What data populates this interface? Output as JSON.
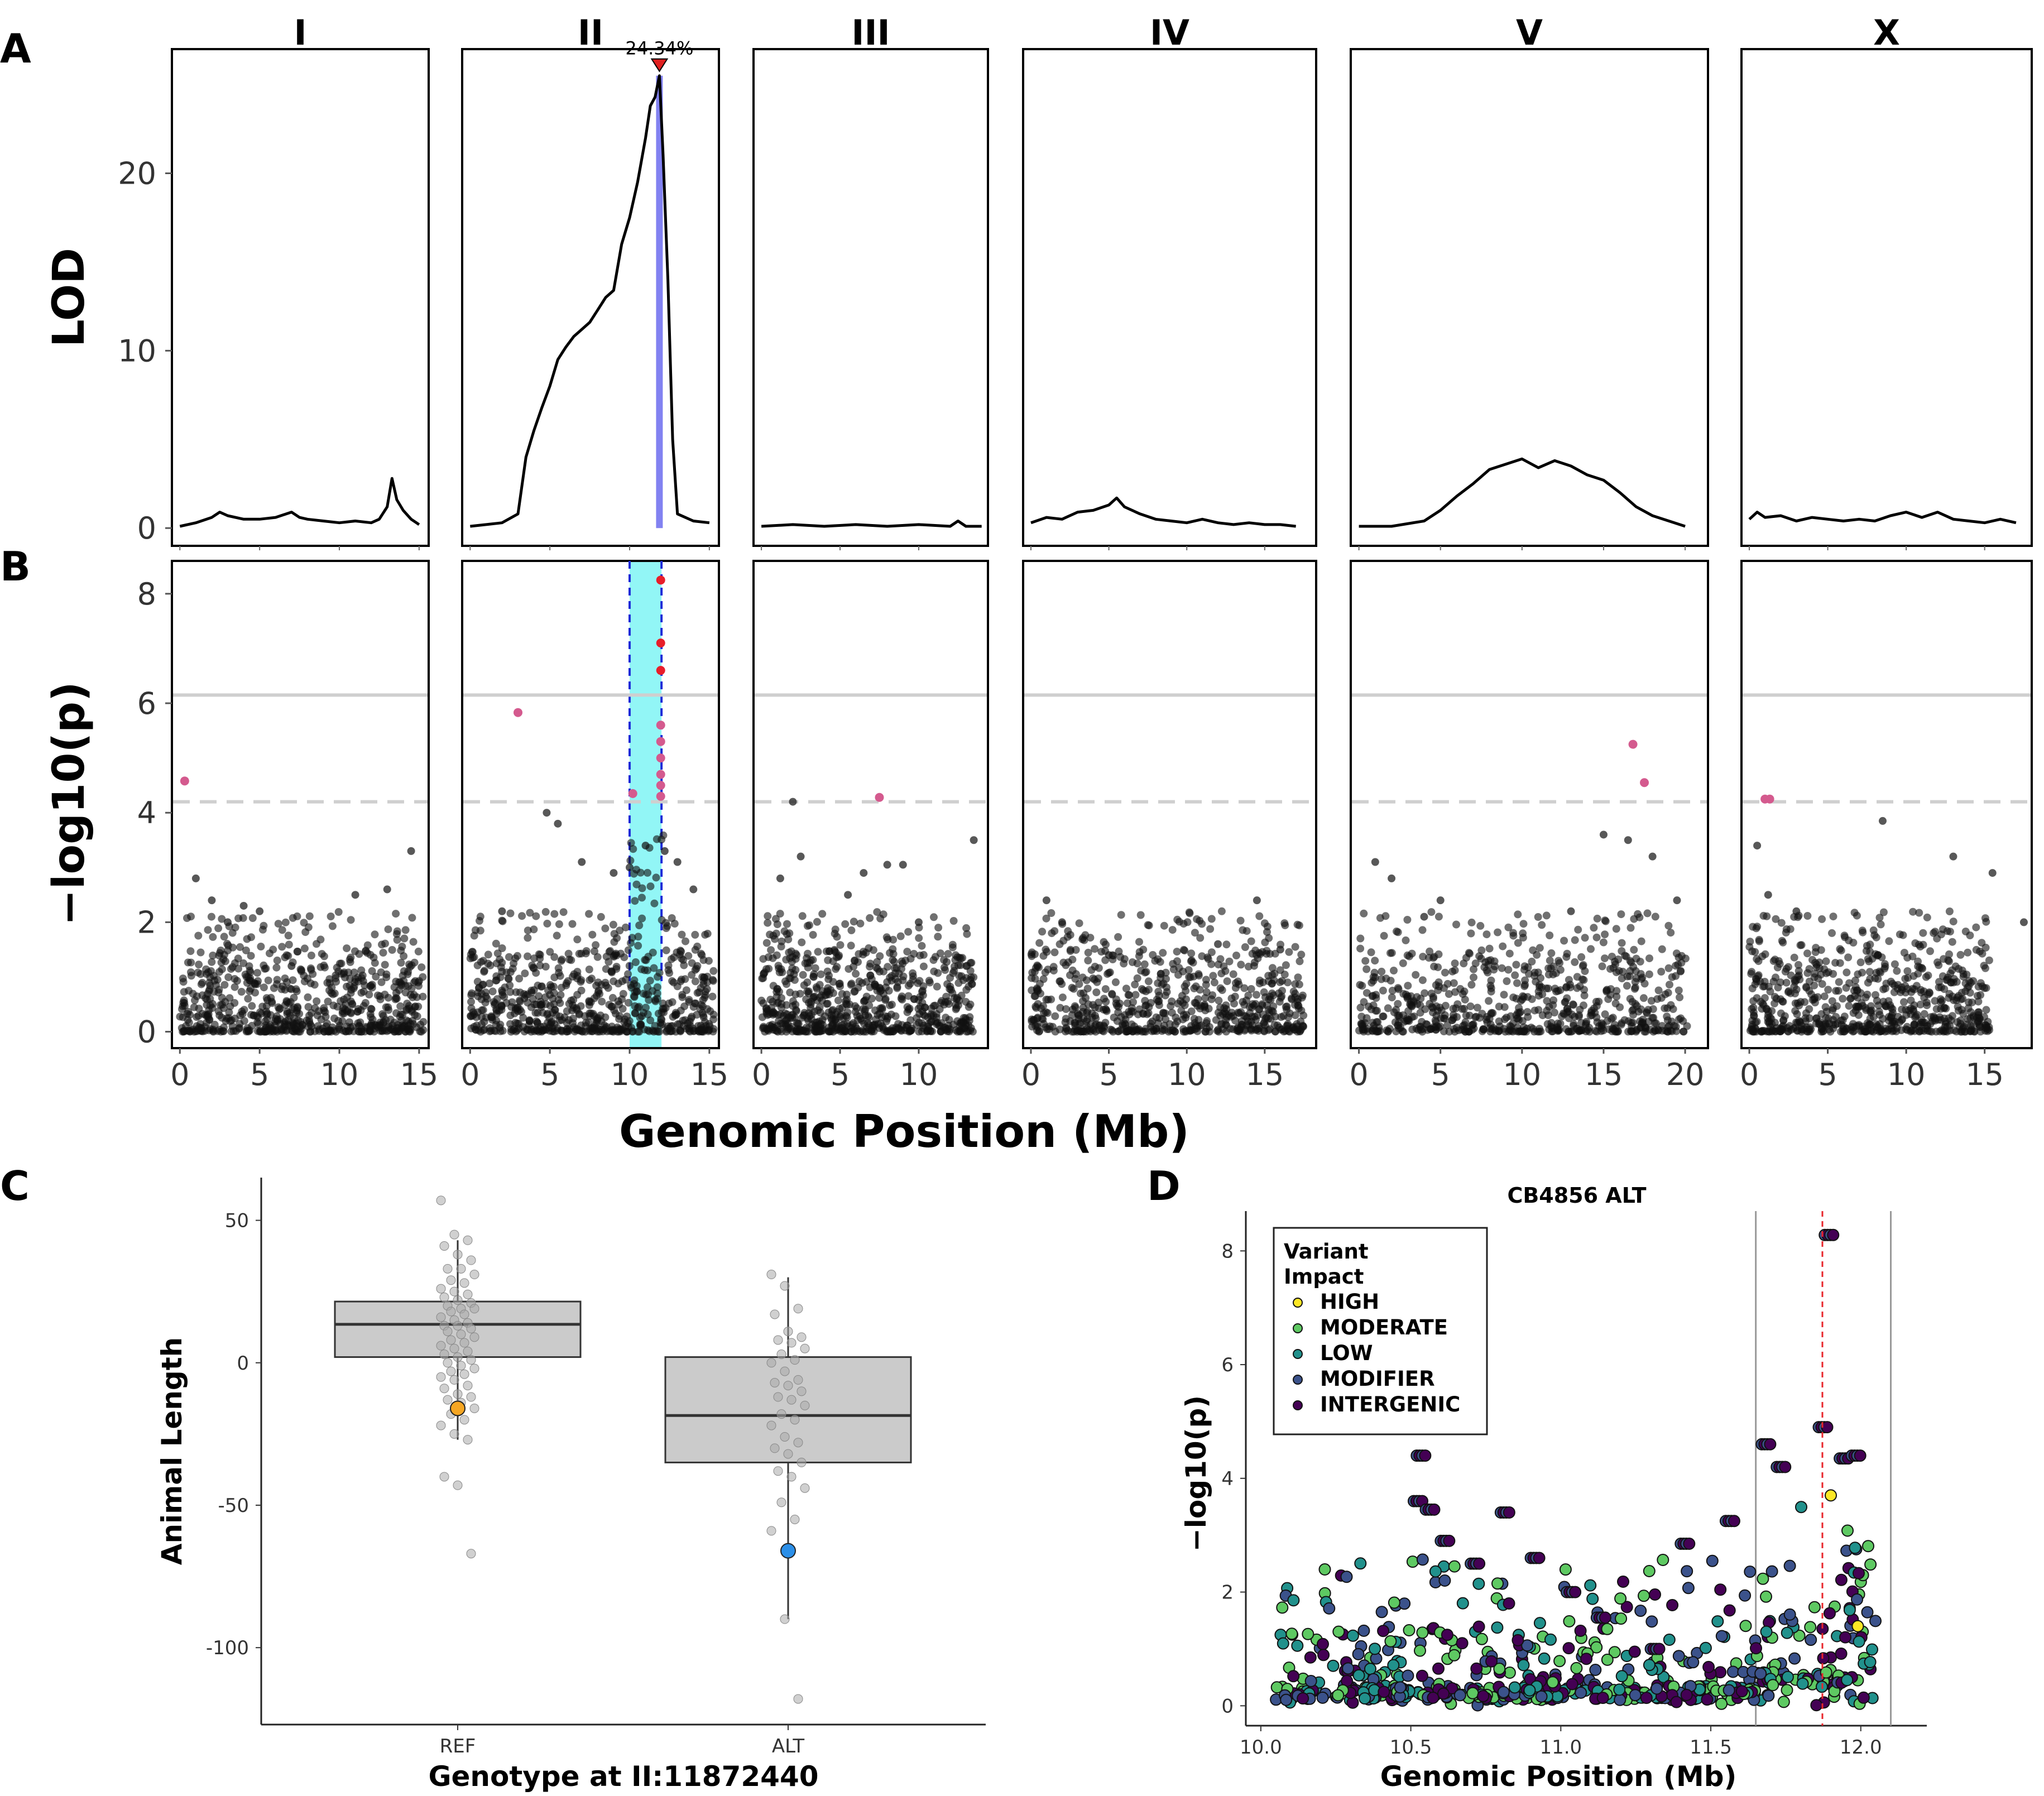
{
  "panel_letters": {
    "a": "A",
    "b": "B",
    "c": "C",
    "d": "D"
  },
  "chart_data": [
    {
      "panel": "A",
      "type": "line",
      "ylabel": "LOD",
      "yticks": [
        0,
        10,
        20
      ],
      "ylim": [
        -1,
        27
      ],
      "peak_label": "24.34%",
      "chromosomes": [
        {
          "name": "I",
          "xlim": [
            -0.5,
            15.6
          ],
          "xticks": [
            0,
            5,
            10,
            15
          ],
          "lod_x": [
            0,
            1,
            2,
            2.5,
            3,
            4,
            5,
            6,
            7,
            7.5,
            8,
            9,
            10,
            11,
            12,
            12.5,
            13,
            13.3,
            13.6,
            14,
            14.5,
            15
          ],
          "lod_y": [
            0.1,
            0.3,
            0.6,
            0.9,
            0.7,
            0.5,
            0.5,
            0.6,
            0.9,
            0.6,
            0.5,
            0.4,
            0.3,
            0.4,
            0.3,
            0.5,
            1.2,
            2.8,
            1.6,
            1.0,
            0.5,
            0.2
          ]
        },
        {
          "name": "II",
          "xlim": [
            -0.5,
            15.6
          ],
          "xticks": [
            0,
            5,
            10,
            15
          ],
          "lod_x": [
            0,
            1,
            2,
            3,
            3.5,
            4,
            4.5,
            5,
            5.5,
            6,
            6.5,
            7,
            7.5,
            8,
            8.5,
            9,
            9.5,
            10,
            10.5,
            11,
            11.3,
            11.6,
            11.87,
            12.1,
            12.4,
            12.7,
            13,
            14,
            15
          ],
          "lod_y": [
            0.1,
            0.2,
            0.3,
            0.8,
            4.0,
            5.5,
            6.8,
            8.0,
            9.5,
            10.2,
            10.8,
            11.2,
            11.6,
            12.3,
            13.0,
            13.4,
            16.0,
            17.5,
            19.5,
            22.0,
            23.8,
            24.3,
            25.5,
            21.0,
            14.0,
            5.0,
            0.8,
            0.4,
            0.3
          ],
          "ci_mb": 11.87
        },
        {
          "name": "III",
          "xlim": [
            -0.5,
            14.4
          ],
          "xticks": [
            0,
            5,
            10
          ],
          "lod_x": [
            0,
            2,
            4,
            6,
            8,
            10,
            12,
            12.5,
            13,
            14
          ],
          "lod_y": [
            0.1,
            0.2,
            0.1,
            0.2,
            0.1,
            0.2,
            0.1,
            0.4,
            0.1,
            0.1
          ]
        },
        {
          "name": "IV",
          "xlim": [
            -0.5,
            18.3
          ],
          "xticks": [
            0,
            5,
            10,
            15
          ],
          "lod_x": [
            0,
            1,
            2,
            3,
            4,
            5,
            5.5,
            6,
            7,
            8,
            9,
            10,
            11,
            12,
            13,
            14,
            15,
            16,
            17
          ],
          "lod_y": [
            0.3,
            0.6,
            0.5,
            0.9,
            1.0,
            1.3,
            1.7,
            1.2,
            0.8,
            0.5,
            0.4,
            0.3,
            0.5,
            0.3,
            0.2,
            0.3,
            0.2,
            0.2,
            0.1
          ]
        },
        {
          "name": "V",
          "xlim": [
            -0.5,
            21.4
          ],
          "xticks": [
            0,
            5,
            10,
            15,
            20
          ],
          "lod_x": [
            0,
            2,
            4,
            5,
            6,
            7,
            8,
            9,
            10,
            11,
            12,
            13,
            14,
            15,
            16,
            17,
            18,
            19,
            20
          ],
          "lod_y": [
            0.1,
            0.1,
            0.4,
            1.0,
            1.8,
            2.5,
            3.3,
            3.6,
            3.9,
            3.4,
            3.8,
            3.5,
            3.0,
            2.7,
            2.0,
            1.2,
            0.7,
            0.4,
            0.1
          ]
        },
        {
          "name": "X",
          "xlim": [
            -0.5,
            18.0
          ],
          "xticks": [
            0,
            5,
            10,
            15
          ],
          "lod_x": [
            0,
            0.5,
            1,
            2,
            3,
            4,
            5,
            6,
            7,
            8,
            9,
            10,
            11,
            12,
            13,
            14,
            15,
            16,
            17
          ],
          "lod_y": [
            0.5,
            0.9,
            0.6,
            0.7,
            0.4,
            0.6,
            0.5,
            0.4,
            0.5,
            0.4,
            0.7,
            0.9,
            0.6,
            0.9,
            0.5,
            0.4,
            0.3,
            0.5,
            0.3
          ]
        }
      ]
    },
    {
      "panel": "B",
      "type": "scatter",
      "ylabel": "−log10(p)",
      "xlabel": "Genomic Position (Mb)",
      "yticks": [
        0,
        2,
        4,
        6,
        8
      ],
      "ylim": [
        -0.3,
        8.6
      ],
      "bonferroni": 6.15,
      "eigen_threshold": 4.2,
      "ci_region_mb": [
        10.0,
        12.0
      ],
      "significant_points": {
        "I": [
          [
            0.3,
            4.58
          ]
        ],
        "II": [
          [
            3.0,
            5.83
          ],
          [
            10.2,
            4.35
          ],
          [
            11.95,
            8.25
          ],
          [
            11.95,
            7.1
          ],
          [
            11.95,
            6.6
          ],
          [
            11.95,
            5.6
          ],
          [
            11.95,
            5.3
          ],
          [
            11.95,
            5.0
          ],
          [
            11.95,
            4.7
          ],
          [
            11.95,
            4.5
          ],
          [
            11.95,
            4.3
          ]
        ],
        "III": [
          [
            7.5,
            4.28
          ]
        ],
        "V": [
          [
            16.8,
            5.25
          ],
          [
            17.5,
            4.55
          ]
        ],
        "X": [
          [
            1.0,
            4.25
          ],
          [
            1.3,
            4.25
          ]
        ]
      },
      "top_points": {
        "I": [
          [
            1,
            2.8
          ],
          [
            2,
            2.4
          ],
          [
            3,
            2.0
          ],
          [
            4,
            2.3
          ],
          [
            5,
            2.2
          ],
          [
            7,
            1.2
          ],
          [
            11,
            2.5
          ],
          [
            13,
            2.6
          ],
          [
            14.5,
            3.3
          ]
        ],
        "II": [
          [
            2,
            2.2
          ],
          [
            4.8,
            4.0
          ],
          [
            5.5,
            3.8
          ],
          [
            7,
            3.1
          ],
          [
            9,
            2.9
          ],
          [
            10,
            3.0
          ],
          [
            11,
            3.4
          ],
          [
            12.2,
            3.3
          ],
          [
            13,
            3.1
          ],
          [
            14,
            2.6
          ]
        ],
        "III": [
          [
            1.2,
            2.8
          ],
          [
            2,
            4.2
          ],
          [
            2.5,
            3.2
          ],
          [
            5.5,
            2.5
          ],
          [
            6.5,
            2.9
          ],
          [
            8,
            3.05
          ],
          [
            9,
            3.05
          ],
          [
            10,
            2.0
          ],
          [
            13.5,
            3.5
          ]
        ],
        "IV": [
          [
            1,
            2.4
          ],
          [
            2,
            2.0
          ],
          [
            5,
            1.4
          ],
          [
            12,
            1.6
          ],
          [
            14.5,
            2.4
          ],
          [
            16,
            1.5
          ]
        ],
        "V": [
          [
            1,
            3.1
          ],
          [
            2,
            2.8
          ],
          [
            4,
            2.1
          ],
          [
            5,
            2.4
          ],
          [
            13,
            2.2
          ],
          [
            15,
            3.6
          ],
          [
            16.5,
            3.5
          ],
          [
            18,
            3.2
          ],
          [
            19.5,
            2.4
          ]
        ],
        "X": [
          [
            0.5,
            3.4
          ],
          [
            1.2,
            2.5
          ],
          [
            3,
            2.2
          ],
          [
            8.5,
            3.85
          ],
          [
            13,
            3.2
          ],
          [
            15.5,
            2.9
          ],
          [
            17.5,
            2.0
          ]
        ]
      }
    },
    {
      "panel": "C",
      "type": "box",
      "xlabel": "Genotype at II:11872440",
      "ylabel": "Animal Length",
      "categories": [
        "REF",
        "ALT"
      ],
      "yticks": [
        -100,
        -50,
        0,
        50
      ],
      "ylim": [
        -127,
        65
      ],
      "boxes": [
        {
          "q1": 2,
          "median": 13.5,
          "q3": 21.5,
          "whisker_low": -27,
          "whisker_high": 43
        },
        {
          "q1": -35,
          "median": -18.5,
          "q3": 2,
          "whisker_low": -90,
          "whisker_high": 30
        }
      ],
      "points": [
        [
          57,
          45,
          43,
          41,
          38,
          36,
          33,
          33,
          31,
          29,
          28,
          26,
          25,
          24,
          23,
          22,
          21,
          20,
          19,
          19,
          18,
          17,
          16,
          15,
          14,
          13,
          13,
          12,
          11,
          10,
          9,
          8,
          7,
          6,
          5,
          4,
          3,
          2,
          1,
          0,
          -1,
          -2,
          -3,
          -4,
          -5,
          -6,
          -8,
          -9,
          -11,
          -12,
          -13,
          -14,
          -16,
          -18,
          -20,
          -22,
          -25,
          -27,
          -40,
          -43,
          -67
        ],
        [
          31,
          27,
          19,
          17,
          11,
          9,
          8,
          7,
          5,
          3,
          1,
          0,
          -3,
          -6,
          -7,
          -8,
          -10,
          -12,
          -13,
          -15,
          -18,
          -20,
          -22,
          -26,
          -28,
          -30,
          -32,
          -35,
          -38,
          -40,
          -44,
          -49,
          -55,
          -59,
          -90,
          -118
        ]
      ],
      "highlights": [
        {
          "category": "REF",
          "value": -16,
          "color": "#F5A623"
        },
        {
          "category": "ALT",
          "value": -66,
          "color": "#2B8FE8"
        }
      ]
    },
    {
      "panel": "D",
      "type": "scatter",
      "title": "CB4856 ALT",
      "xlabel": "Genomic Position (Mb)",
      "ylabel": "−log10(p)",
      "xticks": [
        10.0,
        10.5,
        11.0,
        11.5,
        12.0
      ],
      "yticks": [
        0,
        2,
        4,
        6,
        8
      ],
      "xlim": [
        9.95,
        12.22
      ],
      "ylim": [
        -0.35,
        8.7
      ],
      "vlines": [
        11.65,
        12.1
      ],
      "red_dash": 11.872,
      "legend_title": "Variant Impact",
      "legend_placement": "top-left",
      "legend": [
        {
          "label": "HIGH",
          "color": "#FDE725"
        },
        {
          "label": "MODERATE",
          "color": "#5EC962"
        },
        {
          "label": "LOW",
          "color": "#21918C"
        },
        {
          "label": "MODIFIER",
          "color": "#3B528B"
        },
        {
          "label": "INTERGENIC",
          "color": "#440154"
        }
      ],
      "clusters": [
        {
          "x": 10.52,
          "y": 4.4
        },
        {
          "x": 10.51,
          "y": 3.6
        },
        {
          "x": 10.55,
          "y": 3.45
        },
        {
          "x": 10.6,
          "y": 2.9
        },
        {
          "x": 10.8,
          "y": 3.4
        },
        {
          "x": 10.7,
          "y": 2.5
        },
        {
          "x": 10.9,
          "y": 2.6
        },
        {
          "x": 11.02,
          "y": 2.0
        },
        {
          "x": 11.12,
          "y": 1.55
        },
        {
          "x": 11.3,
          "y": 1.0
        },
        {
          "x": 11.4,
          "y": 2.85
        },
        {
          "x": 11.55,
          "y": 3.25
        },
        {
          "x": 11.67,
          "y": 4.6
        },
        {
          "x": 11.72,
          "y": 4.2
        },
        {
          "x": 11.86,
          "y": 4.9
        },
        {
          "x": 11.88,
          "y": 8.28
        },
        {
          "x": 11.93,
          "y": 4.35
        },
        {
          "x": 11.97,
          "y": 4.4
        }
      ],
      "high_points": [
        [
          11.9,
          3.7
        ],
        [
          11.99,
          1.4
        ]
      ]
    }
  ]
}
